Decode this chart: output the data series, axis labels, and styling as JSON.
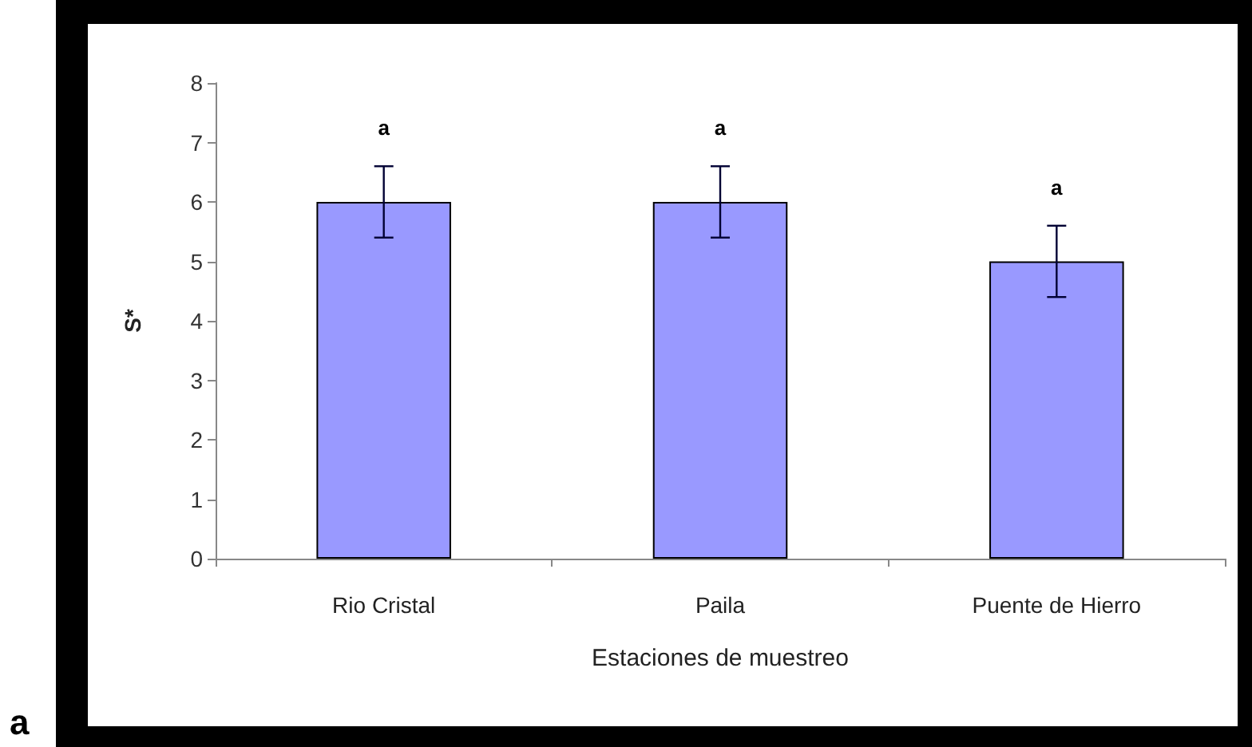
{
  "chart_data": {
    "type": "bar",
    "xlabel": "Estaciones de muestreo",
    "ylabel": "S*",
    "categories": [
      "Rio Cristal",
      "Paila",
      "Puente de Hierro"
    ],
    "values": [
      6,
      6,
      5
    ],
    "errors": [
      0.6,
      0.6,
      0.6
    ],
    "color": "#9999ff",
    "ylim": [
      0,
      8
    ],
    "yticks": [
      0,
      1,
      2,
      3,
      4,
      5,
      6,
      7,
      8
    ],
    "grid": false,
    "annotations": [
      "a",
      "a",
      "a",
      "a"
    ]
  }
}
